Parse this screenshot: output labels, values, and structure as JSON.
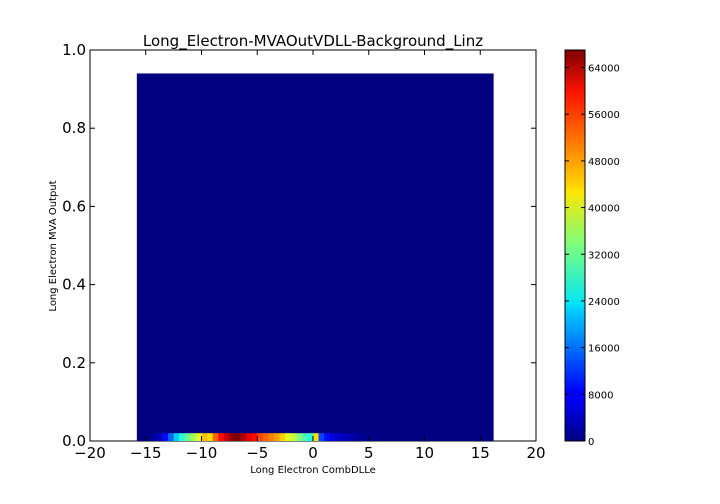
{
  "chart_data": {
    "type": "heatmap",
    "title": "Long_Electron-MVAOutVDLL-Background_Linz",
    "xlabel": "Long Electron CombDLLe",
    "ylabel": "Long Electron MVA Output",
    "xlim": [
      -20,
      20
    ],
    "ylim": [
      0.0,
      1.0
    ],
    "x_ticks": [
      "−20",
      "−15",
      "−10",
      "−5",
      "0",
      "5",
      "10",
      "15",
      "20"
    ],
    "y_ticks": [
      "0.0",
      "0.2",
      "0.4",
      "0.6",
      "0.8",
      "1.0"
    ],
    "colormap": "jet",
    "colorbar_range": [
      0,
      67000
    ],
    "colorbar_ticks": [
      "0",
      "8000",
      "16000",
      "24000",
      "32000",
      "40000",
      "48000",
      "56000",
      "64000"
    ],
    "histogram_x_range": [
      -15.8,
      16.2
    ],
    "histogram_y_range": [
      0.0,
      0.94
    ],
    "background_value": 0,
    "first_row_y_range": [
      0.0,
      0.02
    ],
    "first_row_values": [
      {
        "x": -15.0,
        "value": 500
      },
      {
        "x": -14.5,
        "value": 2000
      },
      {
        "x": -14.0,
        "value": 4000
      },
      {
        "x": -13.5,
        "value": 9000
      },
      {
        "x": -13.0,
        "value": 15000
      },
      {
        "x": -12.5,
        "value": 22000
      },
      {
        "x": -12.0,
        "value": 28000
      },
      {
        "x": -11.5,
        "value": 32000
      },
      {
        "x": -11.0,
        "value": 36000
      },
      {
        "x": -10.5,
        "value": 40000
      },
      {
        "x": -10.0,
        "value": 46000
      },
      {
        "x": -9.5,
        "value": 44000
      },
      {
        "x": -9.0,
        "value": 52000
      },
      {
        "x": -8.5,
        "value": 58000
      },
      {
        "x": -8.0,
        "value": 62000
      },
      {
        "x": -7.5,
        "value": 66000
      },
      {
        "x": -7.0,
        "value": 67000
      },
      {
        "x": -6.5,
        "value": 64000
      },
      {
        "x": -6.0,
        "value": 60000
      },
      {
        "x": -5.5,
        "value": 58000
      },
      {
        "x": -5.0,
        "value": 54000
      },
      {
        "x": -4.5,
        "value": 52000
      },
      {
        "x": -4.0,
        "value": 50000
      },
      {
        "x": -3.5,
        "value": 48000
      },
      {
        "x": -3.0,
        "value": 45000
      },
      {
        "x": -2.5,
        "value": 40000
      },
      {
        "x": -2.0,
        "value": 38000
      },
      {
        "x": -1.5,
        "value": 34000
      },
      {
        "x": -1.0,
        "value": 30000
      },
      {
        "x": -0.5,
        "value": 27000
      },
      {
        "x": 0.0,
        "value": 44000
      },
      {
        "x": 0.5,
        "value": 13000
      },
      {
        "x": 1.0,
        "value": 9000
      },
      {
        "x": 1.5,
        "value": 6000
      },
      {
        "x": 2.0,
        "value": 5000
      },
      {
        "x": 2.5,
        "value": 4000
      },
      {
        "x": 3.0,
        "value": 3000
      },
      {
        "x": 3.5,
        "value": 2500
      },
      {
        "x": 4.0,
        "value": 1500
      },
      {
        "x": 4.5,
        "value": 1000
      },
      {
        "x": 5.0,
        "value": 600
      },
      {
        "x": 5.5,
        "value": 300
      }
    ],
    "first_row_bin_width": 0.5,
    "grid": false
  }
}
